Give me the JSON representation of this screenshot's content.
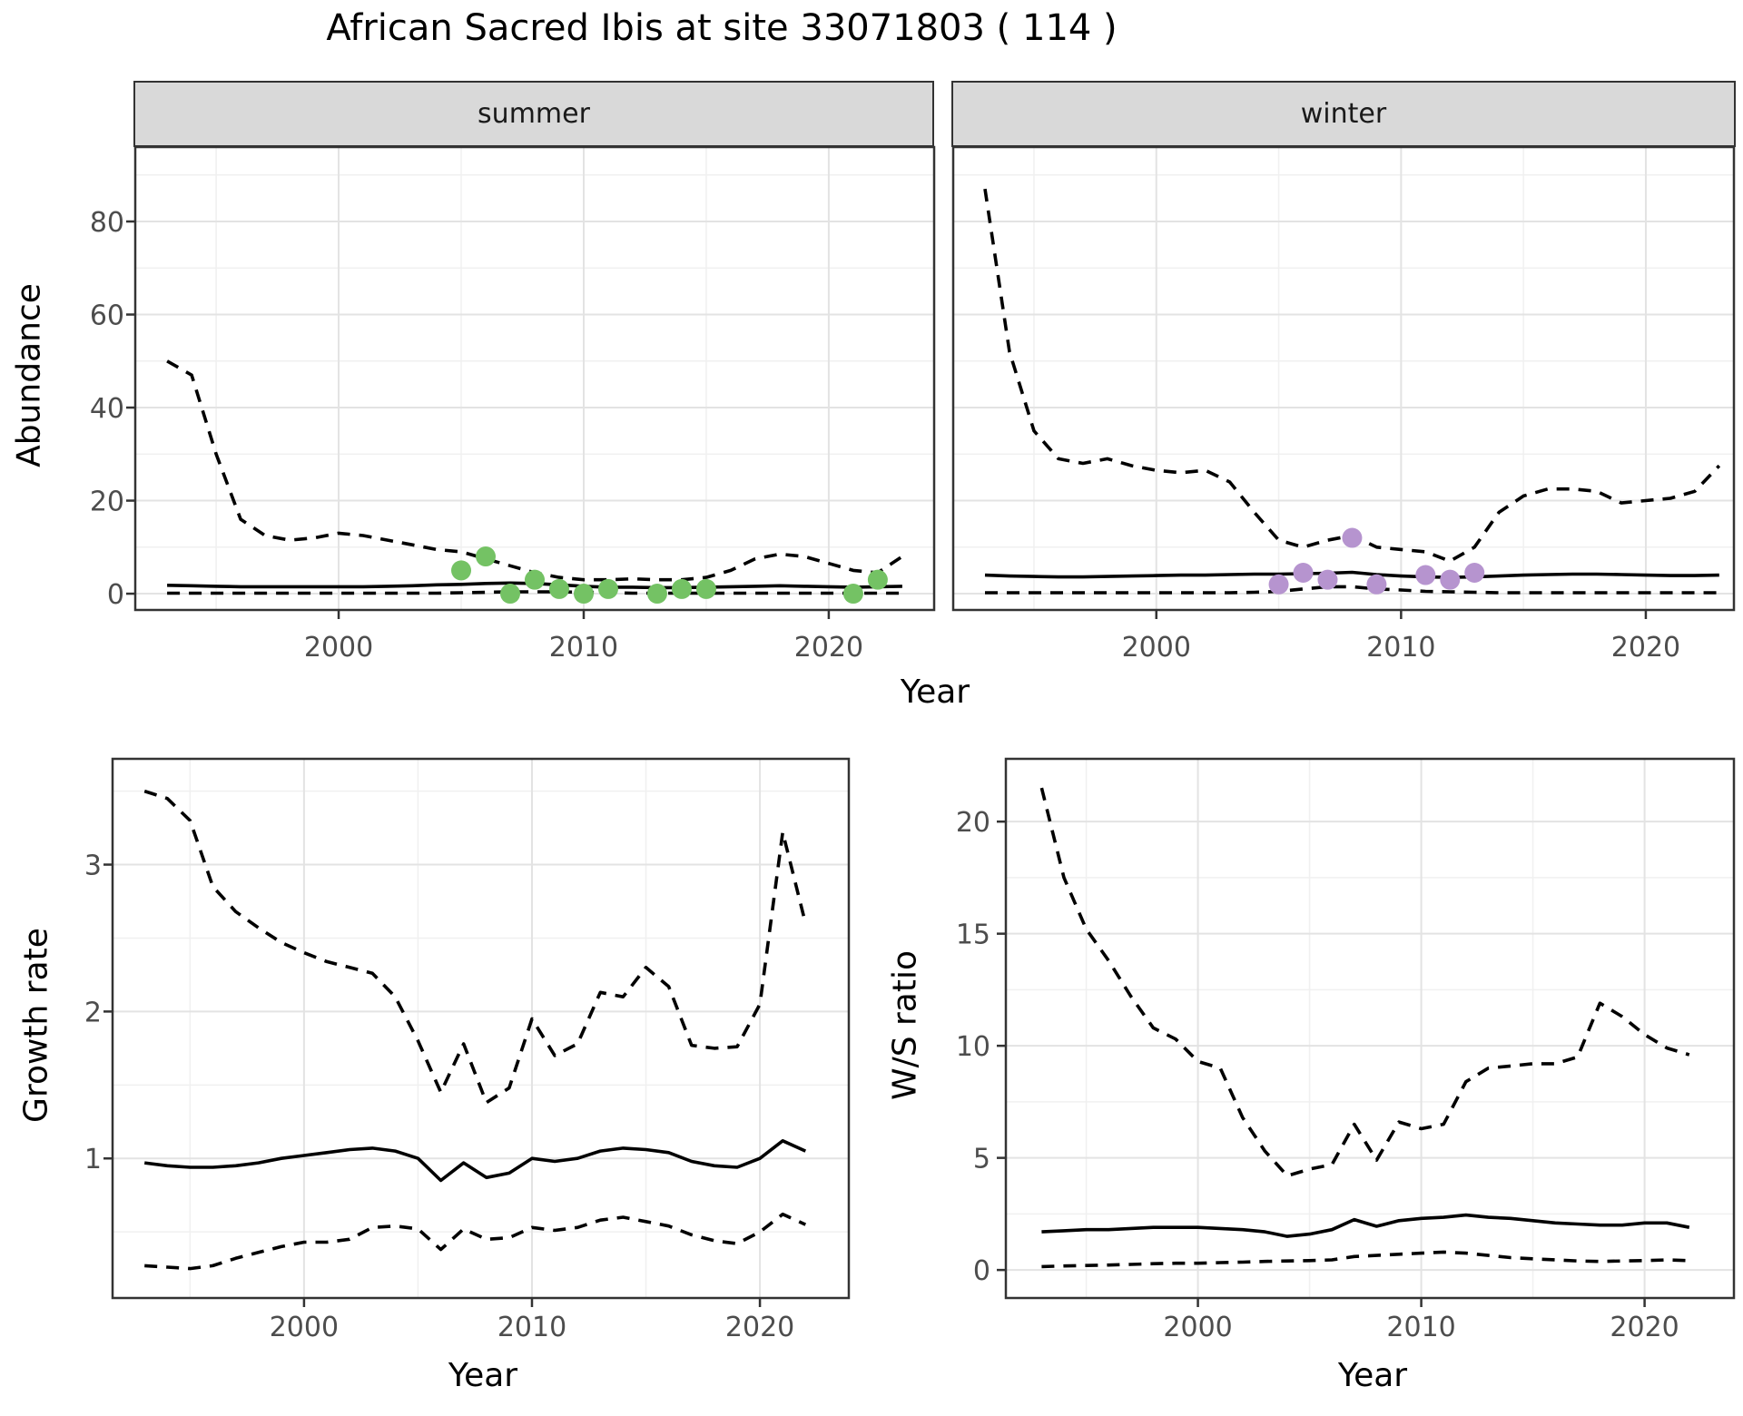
{
  "title": "African Sacred Ibis at site 33071803 ( 114 )",
  "axes": {
    "x_label": "Year",
    "abundance_label": "Abundance",
    "growth_label": "Growth rate",
    "ws_label": "W/S ratio"
  },
  "colors": {
    "summer_point": "#74c264",
    "winter_point": "#b694cf",
    "line": "#000000",
    "panel_border": "#333333",
    "grid_major": "#e3e3e3",
    "grid_minor": "#f0f0f0",
    "strip_bg": "#d9d9d9",
    "tick_text": "#4d4d4d"
  },
  "chart_data": [
    {
      "id": "abundance_summer",
      "type": "line",
      "facet": "summer",
      "xlabel": "Year",
      "ylabel": "Abundance",
      "xlim": [
        1991.7,
        2024.3
      ],
      "ylim": [
        -3.5,
        96
      ],
      "xticks": [
        2000,
        2010,
        2020
      ],
      "yticks": [
        0,
        20,
        40,
        60,
        80
      ],
      "xminor": [
        1995,
        2005,
        2015
      ],
      "yminor": [
        10,
        30,
        50,
        70,
        90
      ],
      "years": [
        1993,
        1994,
        1995,
        1996,
        1997,
        1998,
        1999,
        2000,
        2001,
        2002,
        2003,
        2004,
        2005,
        2006,
        2007,
        2008,
        2009,
        2010,
        2011,
        2012,
        2013,
        2014,
        2015,
        2016,
        2017,
        2018,
        2019,
        2020,
        2021,
        2022,
        2023
      ],
      "series": [
        {
          "name": "upper_ci",
          "style": "dashed",
          "values": [
            50,
            47,
            30,
            16,
            12.5,
            11.5,
            12,
            13,
            12.5,
            11.5,
            10.5,
            9.5,
            9,
            7.5,
            6,
            4.5,
            3.5,
            3,
            3,
            3.2,
            3,
            3,
            3.5,
            5,
            7.5,
            8.5,
            8,
            6.5,
            5,
            4.5,
            8
          ]
        },
        {
          "name": "median",
          "style": "solid",
          "values": [
            1.8,
            1.7,
            1.6,
            1.5,
            1.5,
            1.5,
            1.5,
            1.5,
            1.5,
            1.6,
            1.7,
            1.9,
            2.0,
            2.2,
            2.3,
            2.2,
            1.9,
            1.6,
            1.4,
            1.4,
            1.3,
            1.3,
            1.4,
            1.5,
            1.6,
            1.7,
            1.6,
            1.5,
            1.4,
            1.5,
            1.6
          ]
        },
        {
          "name": "lower_ci",
          "style": "dashed",
          "values": [
            0.1,
            0.1,
            0.1,
            0.1,
            0.1,
            0.1,
            0.1,
            0.1,
            0.1,
            0.1,
            0.1,
            0.1,
            0.2,
            0.3,
            0.4,
            0.4,
            0.4,
            0.3,
            0.2,
            0.1,
            0.1,
            0.1,
            0.1,
            0.1,
            0.1,
            0.1,
            0.1,
            0.1,
            0.1,
            0.1,
            0.1
          ]
        }
      ],
      "points": {
        "name": "summer observations",
        "color_key": "summer_point",
        "data": [
          [
            2005,
            5
          ],
          [
            2006,
            8
          ],
          [
            2007,
            0
          ],
          [
            2008,
            3
          ],
          [
            2009,
            1
          ],
          [
            2010,
            0
          ],
          [
            2011,
            1
          ],
          [
            2013,
            0
          ],
          [
            2014,
            1
          ],
          [
            2015,
            1
          ],
          [
            2021,
            0
          ],
          [
            2022,
            3
          ]
        ]
      }
    },
    {
      "id": "abundance_winter",
      "type": "line",
      "facet": "winter",
      "xlabel": "Year",
      "ylabel": "Abundance",
      "xlim": [
        1991.7,
        2023.6
      ],
      "ylim": [
        -3.5,
        96
      ],
      "xticks": [
        2000,
        2010,
        2020
      ],
      "yticks": [
        0,
        20,
        40,
        60,
        80
      ],
      "xminor": [
        1995,
        2005,
        2015
      ],
      "yminor": [
        10,
        30,
        50,
        70,
        90
      ],
      "years": [
        1993,
        1994,
        1995,
        1996,
        1997,
        1998,
        1999,
        2000,
        2001,
        2002,
        2003,
        2004,
        2005,
        2006,
        2007,
        2008,
        2009,
        2010,
        2011,
        2012,
        2013,
        2014,
        2015,
        2016,
        2017,
        2018,
        2019,
        2020,
        2021,
        2022,
        2023
      ],
      "series": [
        {
          "name": "upper_ci",
          "style": "dashed",
          "values": [
            87,
            52,
            35,
            29,
            28,
            29,
            27.5,
            26.5,
            26,
            26.5,
            24,
            17.5,
            11.5,
            10,
            11.5,
            12.5,
            10,
            9.5,
            9,
            7,
            10,
            17.5,
            21,
            22.5,
            22.5,
            22,
            19.5,
            20,
            20.5,
            22,
            27.5
          ]
        },
        {
          "name": "median",
          "style": "solid",
          "values": [
            4.0,
            3.8,
            3.7,
            3.6,
            3.6,
            3.7,
            3.8,
            3.9,
            4.0,
            4.0,
            4.1,
            4.2,
            4.2,
            4.3,
            4.4,
            4.6,
            4.1,
            3.8,
            3.6,
            3.5,
            3.6,
            3.8,
            4.0,
            4.1,
            4.2,
            4.2,
            4.1,
            4.0,
            3.9,
            3.9,
            4.0
          ]
        },
        {
          "name": "lower_ci",
          "style": "dashed",
          "values": [
            0.2,
            0.2,
            0.2,
            0.2,
            0.2,
            0.2,
            0.2,
            0.2,
            0.2,
            0.2,
            0.2,
            0.3,
            0.5,
            1.0,
            1.5,
            1.5,
            1.0,
            0.8,
            0.5,
            0.4,
            0.3,
            0.2,
            0.2,
            0.2,
            0.2,
            0.2,
            0.2,
            0.2,
            0.2,
            0.2,
            0.2
          ]
        }
      ],
      "points": {
        "name": "winter observations",
        "color_key": "winter_point",
        "data": [
          [
            2005,
            2
          ],
          [
            2006,
            4.5
          ],
          [
            2007,
            3
          ],
          [
            2008,
            12
          ],
          [
            2009,
            2
          ],
          [
            2011,
            4
          ],
          [
            2012,
            3
          ],
          [
            2013,
            4.5
          ]
        ]
      }
    },
    {
      "id": "growth_rate",
      "type": "line",
      "facet": null,
      "xlabel": "Year",
      "ylabel": "Growth rate",
      "xlim": [
        1991.6,
        2023.9
      ],
      "ylim": [
        0.05,
        3.72
      ],
      "xticks": [
        2000,
        2010,
        2020
      ],
      "yticks": [
        1,
        2,
        3
      ],
      "xminor": [
        1995,
        2005,
        2015
      ],
      "yminor": [
        0.5,
        1.5,
        2.5,
        3.5
      ],
      "years": [
        1993,
        1994,
        1995,
        1996,
        1997,
        1998,
        1999,
        2000,
        2001,
        2002,
        2003,
        2004,
        2005,
        2006,
        2007,
        2008,
        2009,
        2010,
        2011,
        2012,
        2013,
        2014,
        2015,
        2016,
        2017,
        2018,
        2019,
        2020,
        2021,
        2022
      ],
      "series": [
        {
          "name": "upper_ci",
          "style": "dashed",
          "values": [
            3.5,
            3.45,
            3.3,
            2.85,
            2.68,
            2.57,
            2.47,
            2.4,
            2.34,
            2.3,
            2.26,
            2.1,
            1.8,
            1.45,
            1.78,
            1.38,
            1.48,
            1.95,
            1.7,
            1.78,
            2.13,
            2.1,
            2.3,
            2.17,
            1.77,
            1.75,
            1.76,
            2.05,
            3.22,
            2.6
          ]
        },
        {
          "name": "median",
          "style": "solid",
          "values": [
            0.97,
            0.95,
            0.94,
            0.94,
            0.95,
            0.97,
            1.0,
            1.02,
            1.04,
            1.06,
            1.07,
            1.05,
            1.0,
            0.85,
            0.97,
            0.87,
            0.9,
            1.0,
            0.98,
            1.0,
            1.05,
            1.07,
            1.06,
            1.04,
            0.98,
            0.95,
            0.94,
            1.0,
            1.12,
            1.05
          ]
        },
        {
          "name": "lower_ci",
          "style": "dashed",
          "values": [
            0.27,
            0.26,
            0.25,
            0.27,
            0.32,
            0.36,
            0.4,
            0.43,
            0.43,
            0.45,
            0.53,
            0.54,
            0.52,
            0.38,
            0.52,
            0.45,
            0.46,
            0.53,
            0.51,
            0.53,
            0.58,
            0.6,
            0.57,
            0.54,
            0.48,
            0.44,
            0.42,
            0.5,
            0.62,
            0.55
          ]
        }
      ],
      "points": null
    },
    {
      "id": "ws_ratio",
      "type": "line",
      "facet": null,
      "xlabel": "Year",
      "ylabel": "W/S ratio",
      "xlim": [
        1991.4,
        2024.0
      ],
      "ylim": [
        -1.25,
        22.8
      ],
      "xticks": [
        2000,
        2010,
        2020
      ],
      "yticks": [
        0,
        5,
        10,
        15,
        20
      ],
      "xminor": [
        1995,
        2005,
        2015
      ],
      "yminor": [
        2.5,
        7.5,
        12.5,
        17.5
      ],
      "years": [
        1993,
        1994,
        1995,
        1996,
        1997,
        1998,
        1999,
        2000,
        2001,
        2002,
        2003,
        2004,
        2005,
        2006,
        2007,
        2008,
        2009,
        2010,
        2011,
        2012,
        2013,
        2014,
        2015,
        2016,
        2017,
        2018,
        2019,
        2020,
        2021,
        2022
      ],
      "series": [
        {
          "name": "upper_ci",
          "style": "dashed",
          "values": [
            21.5,
            17.5,
            15.2,
            13.8,
            12.2,
            10.8,
            10.3,
            9.3,
            9.0,
            6.8,
            5.3,
            4.2,
            4.5,
            4.7,
            6.5,
            4.9,
            6.6,
            6.3,
            6.5,
            8.4,
            9.0,
            9.1,
            9.2,
            9.2,
            9.5,
            11.9,
            11.3,
            10.5,
            9.9,
            9.6
          ]
        },
        {
          "name": "median",
          "style": "solid",
          "values": [
            1.7,
            1.75,
            1.8,
            1.8,
            1.85,
            1.9,
            1.9,
            1.9,
            1.85,
            1.8,
            1.7,
            1.5,
            1.6,
            1.8,
            2.25,
            1.95,
            2.2,
            2.3,
            2.35,
            2.45,
            2.35,
            2.3,
            2.2,
            2.1,
            2.05,
            2.0,
            2.0,
            2.1,
            2.1,
            1.9
          ]
        },
        {
          "name": "lower_ci",
          "style": "dashed",
          "values": [
            0.15,
            0.18,
            0.2,
            0.22,
            0.25,
            0.28,
            0.3,
            0.3,
            0.33,
            0.35,
            0.38,
            0.4,
            0.42,
            0.45,
            0.6,
            0.65,
            0.7,
            0.75,
            0.8,
            0.75,
            0.65,
            0.55,
            0.5,
            0.45,
            0.4,
            0.38,
            0.4,
            0.42,
            0.45,
            0.42
          ]
        }
      ],
      "points": null
    }
  ]
}
